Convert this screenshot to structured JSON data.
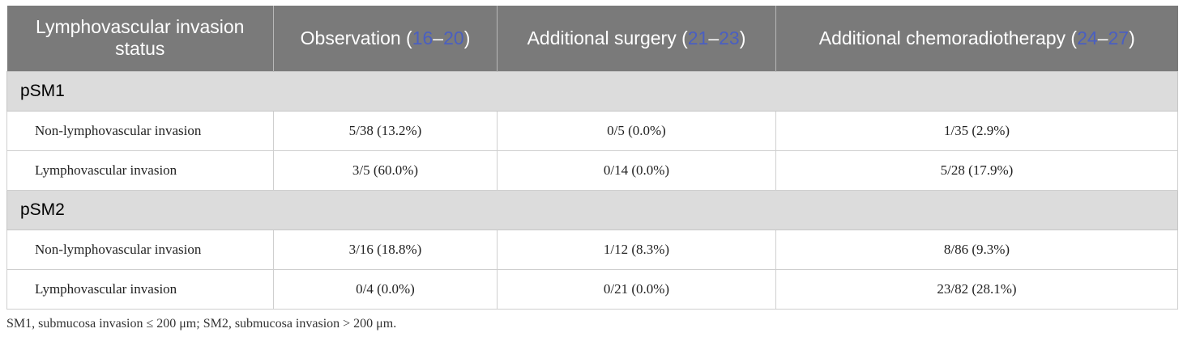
{
  "header": {
    "col1": "Lymphovascular invasion status",
    "col2": {
      "label": "Observation (",
      "ref_start": "16",
      "dash": "–",
      "ref_end": "20",
      "close": ")"
    },
    "col3": {
      "label": "Additional surgery (",
      "ref_start": "21",
      "dash": "–",
      "ref_end": "23",
      "close": ")"
    },
    "col4": {
      "label": "Additional chemoradiotherapy (",
      "ref_start": "24",
      "dash": "–",
      "ref_end": "27",
      "close": ")"
    }
  },
  "sections": [
    {
      "title": "pSM1",
      "rows": [
        {
          "label": "Non-lymphovascular invasion",
          "observation": "5/38 (13.2%)",
          "surgery": "0/5 (0.0%)",
          "chemo": "1/35 (2.9%)"
        },
        {
          "label": "Lymphovascular invasion",
          "observation": "3/5 (60.0%)",
          "surgery": "0/14 (0.0%)",
          "chemo": "5/28 (17.9%)"
        }
      ]
    },
    {
      "title": "pSM2",
      "rows": [
        {
          "label": "Non-lymphovascular invasion",
          "observation": "3/16 (18.8%)",
          "surgery": "1/12 (8.3%)",
          "chemo": "8/86 (9.3%)"
        },
        {
          "label": "Lymphovascular invasion",
          "observation": "0/4 (0.0%)",
          "surgery": "0/21 (0.0%)",
          "chemo": "23/82 (28.1%)"
        }
      ]
    }
  ],
  "footnote": "SM1, submucosa invasion ≤ 200 μm; SM2, submucosa invasion > 200 μm.",
  "colors": {
    "header_bg": "#7a7a7a",
    "section_bg": "#dcdcdc",
    "reference_link": "#4a5fc1"
  }
}
